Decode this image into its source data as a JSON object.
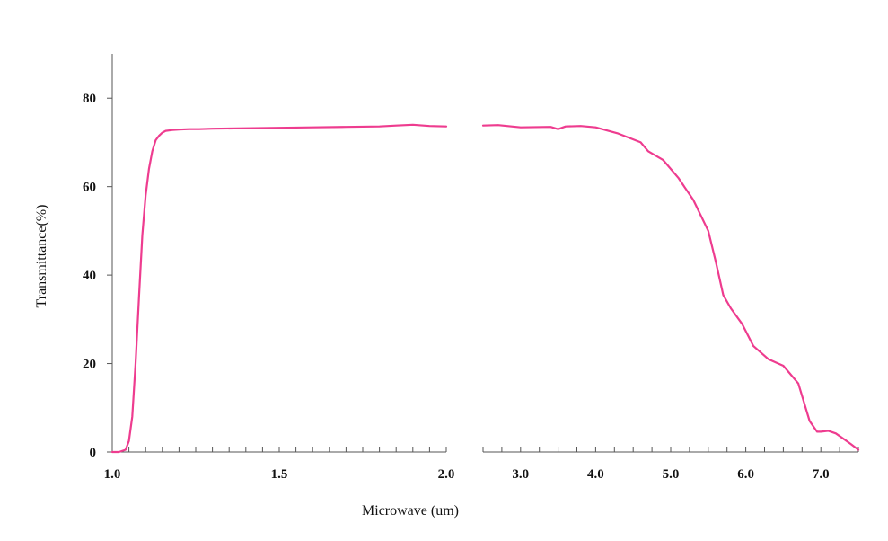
{
  "chart_data": {
    "type": "line",
    "title": "",
    "xlabel": "Microwave (um)",
    "ylabel": "Transmittance(%)",
    "grid": false,
    "legend": "none",
    "line_color": "#ee3c8f",
    "axis_color": "#555555",
    "ylim": [
      0,
      90
    ],
    "yticks": [
      0,
      20,
      40,
      60,
      80
    ],
    "segments": [
      {
        "xlim": [
          1.0,
          2.0
        ],
        "xticks": [
          1.0,
          1.5,
          2.0
        ],
        "tick_labels": [
          "1.0",
          "1.5",
          "2.0"
        ],
        "x": [
          1.0,
          1.02,
          1.04,
          1.05,
          1.06,
          1.07,
          1.08,
          1.09,
          1.1,
          1.11,
          1.12,
          1.13,
          1.14,
          1.15,
          1.16,
          1.18,
          1.2,
          1.23,
          1.26,
          1.3,
          1.4,
          1.5,
          1.6,
          1.7,
          1.8,
          1.85,
          1.9,
          1.95,
          2.0
        ],
        "y": [
          0.0,
          0.0,
          0.5,
          2.5,
          8,
          20,
          35,
          49,
          58,
          64,
          68,
          70.5,
          71.5,
          72.2,
          72.6,
          72.8,
          72.9,
          73.0,
          73.0,
          73.1,
          73.2,
          73.3,
          73.4,
          73.5,
          73.6,
          73.8,
          74.0,
          73.7,
          73.6
        ]
      },
      {
        "xlim": [
          2.5,
          7.5
        ],
        "xticks": [
          3.0,
          4.0,
          5.0,
          6.0,
          7.0
        ],
        "tick_labels": [
          "3.0",
          "4.0",
          "5.0",
          "6.0",
          "7.0"
        ],
        "x": [
          2.5,
          2.7,
          3.0,
          3.4,
          3.5,
          3.6,
          3.8,
          4.0,
          4.3,
          4.6,
          4.7,
          4.9,
          5.1,
          5.3,
          5.5,
          5.6,
          5.7,
          5.8,
          5.95,
          6.1,
          6.3,
          6.5,
          6.7,
          6.85,
          6.95,
          7.0,
          7.1,
          7.2,
          7.3,
          7.4,
          7.5
        ],
        "y": [
          73.8,
          73.9,
          73.4,
          73.5,
          73.0,
          73.6,
          73.7,
          73.4,
          72.0,
          70.0,
          68.0,
          66.0,
          62.0,
          57.0,
          50.0,
          43.0,
          35.5,
          32.5,
          29.0,
          24.0,
          21.0,
          19.5,
          15.5,
          7.0,
          4.6,
          4.6,
          4.8,
          4.2,
          3.0,
          1.8,
          0.5
        ]
      }
    ]
  }
}
